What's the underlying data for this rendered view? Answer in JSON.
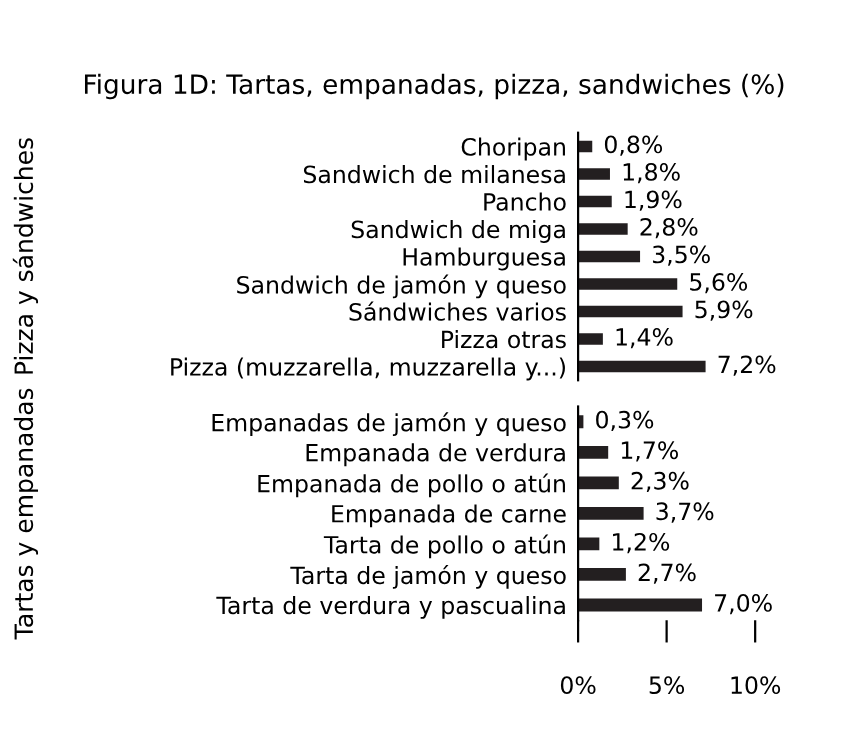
{
  "chart_data": [
    {
      "type": "bar",
      "title": "Figura 1D: Tartas, empanadas, pizza, sandwiches (%)",
      "ylabel": "Pizza y sándwiches",
      "orientation": "horizontal",
      "categories": [
        "Choripan",
        "Sandwich de milanesa",
        "Pancho",
        "Sandwich de miga",
        "Hamburguesa",
        "Sandwich de jamón y queso",
        "Sándwiches varios",
        "Pizza otras",
        "Pizza (muzzarella, muzzarella y...)"
      ],
      "series": [
        {
          "color": "#231f20",
          "values": [
            0.8,
            1.8,
            1.9,
            2.8,
            3.5,
            5.6,
            5.9,
            1.4,
            7.2
          ],
          "value_labels": [
            "0,8%",
            "1,8%",
            "1,9%",
            "2,8%",
            "3,5%",
            "5,6%",
            "5,9%",
            "1,4%",
            "7,2%"
          ]
        }
      ],
      "xlim": [
        0,
        10
      ],
      "tick_labels": "y"
    },
    {
      "type": "bar",
      "ylabel": "Tartas y empanadas",
      "orientation": "horizontal",
      "categories": [
        "Empanadas de jamón y queso",
        "Empanada de verdura",
        "Empanada de pollo o atún",
        "Empanada de carne",
        "Tarta de pollo o atún",
        "Tarta de jamón y queso",
        "Tarta de verdura y pascualina"
      ],
      "series": [
        {
          "color": "#231f20",
          "values": [
            0.3,
            1.7,
            2.3,
            3.7,
            1.2,
            2.7,
            7.0
          ],
          "value_labels": [
            "0,3%",
            "1,7%",
            "2,3%",
            "3,7%",
            "1,2%",
            "2,7%",
            "7,0%"
          ]
        }
      ],
      "xlim": [
        0,
        10
      ],
      "xticks": [
        {
          "value": 0,
          "label": "0%"
        },
        {
          "value": 5,
          "label": "5%"
        },
        {
          "value": 10,
          "label": "10%"
        }
      ]
    }
  ]
}
